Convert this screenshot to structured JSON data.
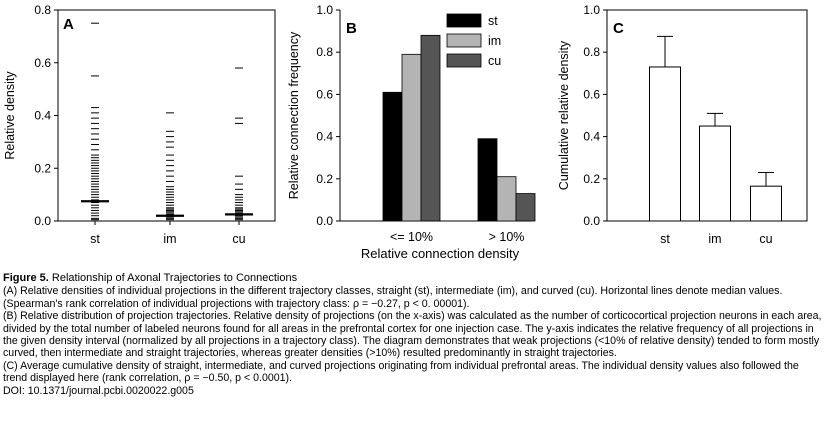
{
  "chart_data": [
    {
      "panel": "A",
      "type": "scatter",
      "categories": [
        "st",
        "im",
        "cu"
      ],
      "ylabel": "Relative density",
      "ylim": [
        0,
        0.8
      ],
      "yticks": [
        "0.0",
        "0.2",
        "0.4",
        "0.6",
        "0.8"
      ],
      "medians": [
        0.075,
        0.02,
        0.025
      ],
      "series": [
        {
          "category": "st",
          "values": [
            0.75,
            0.55,
            0.43,
            0.41,
            0.39,
            0.37,
            0.35,
            0.33,
            0.31,
            0.29,
            0.27,
            0.25,
            0.24,
            0.23,
            0.22,
            0.21,
            0.2,
            0.19,
            0.18,
            0.17,
            0.16,
            0.15,
            0.14,
            0.13,
            0.12,
            0.11,
            0.1,
            0.09,
            0.08,
            0.07,
            0.06,
            0.05,
            0.04,
            0.03,
            0.02,
            0.01,
            0.005
          ]
        },
        {
          "category": "im",
          "values": [
            0.41,
            0.34,
            0.32,
            0.3,
            0.28,
            0.25,
            0.23,
            0.21,
            0.19,
            0.17,
            0.15,
            0.13,
            0.12,
            0.11,
            0.1,
            0.09,
            0.08,
            0.07,
            0.06,
            0.05,
            0.045,
            0.04,
            0.035,
            0.03,
            0.025,
            0.02,
            0.015,
            0.01,
            0.005
          ]
        },
        {
          "category": "cu",
          "values": [
            0.58,
            0.39,
            0.37,
            0.17,
            0.14,
            0.12,
            0.1,
            0.09,
            0.08,
            0.07,
            0.06,
            0.05,
            0.045,
            0.04,
            0.035,
            0.03,
            0.025,
            0.02,
            0.015,
            0.01,
            0.005
          ]
        }
      ]
    },
    {
      "panel": "B",
      "type": "bar",
      "categories": [
        "<= 10%",
        "> 10%"
      ],
      "xlabel": "Relative connection density",
      "ylabel": "Relative connection frequency",
      "ylim": [
        0,
        1.0
      ],
      "yticks": [
        "0.0",
        "0.2",
        "0.4",
        "0.6",
        "0.8",
        "1.0"
      ],
      "legend_position": "top-right",
      "series": [
        {
          "name": "st",
          "color": "#000000",
          "values": [
            0.61,
            0.39
          ]
        },
        {
          "name": "im",
          "color": "#b4b4b4",
          "values": [
            0.79,
            0.21
          ]
        },
        {
          "name": "cu",
          "color": "#555555",
          "values": [
            0.88,
            0.13
          ]
        }
      ]
    },
    {
      "panel": "C",
      "type": "bar",
      "categories": [
        "st",
        "im",
        "cu"
      ],
      "ylabel": "Cumulative relative density",
      "ylim": [
        0,
        1.0
      ],
      "yticks": [
        "0.0",
        "0.2",
        "0.4",
        "0.6",
        "0.8",
        "1.0"
      ],
      "values": [
        0.73,
        0.45,
        0.165
      ],
      "errors": [
        0.145,
        0.06,
        0.065
      ]
    }
  ],
  "caption": {
    "title_label": "Figure 5.",
    "title_text": " Relationship of Axonal Trajectories to Connections",
    "paragraphs": [
      "(A) Relative densities of individual projections in the different trajectory classes, straight (st), intermediate (im), and curved (cu). Horizontal lines denote median values. (Spearman's rank correlation of individual projections with trajectory class: ρ = −0.27, p < 0. 00001).",
      "(B) Relative distribution of projection trajectories. Relative density of projections (on the x-axis) was calculated as the number of corticocortical projection neurons in each area, divided by the total number of labeled neurons found for all areas in the prefrontal cortex for one injection case. The y-axis indicates the relative frequency of all projections in the given density interval (normalized by all projections in a trajectory class). The diagram demonstrates that weak projections (<10% of relative density) tended to form mostly curved, then intermediate and straight trajectories, whereas greater densities (>10%) resulted predominantly in straight trajectories.",
      "(C) Average cumulative density of straight, intermediate, and curved projections originating from individual prefrontal areas. The individual density values also followed the trend displayed here (rank correlation, ρ = −0.50, p < 0.0001)."
    ],
    "doi": "DOI: 10.1371/journal.pcbi.0020022.g005"
  }
}
